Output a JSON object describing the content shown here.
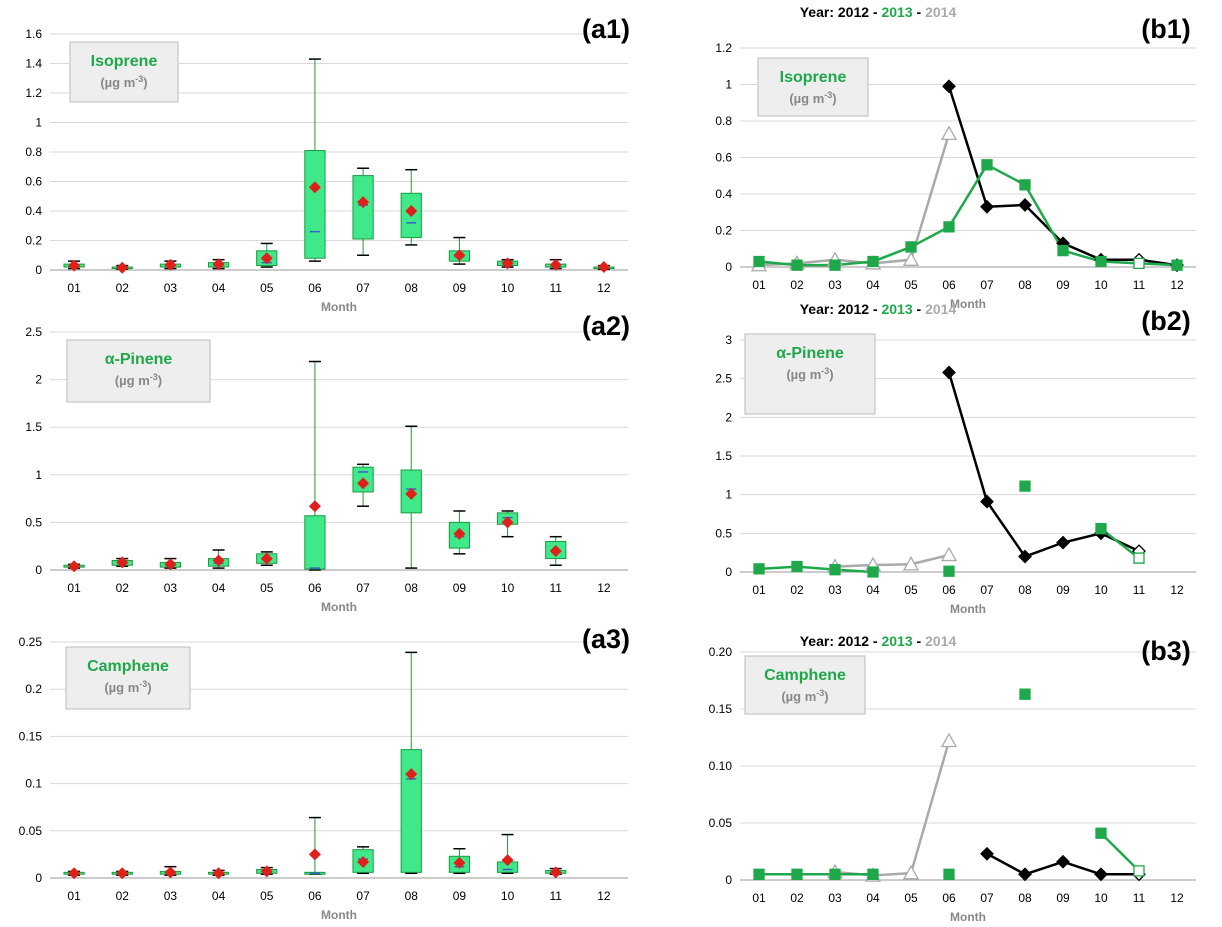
{
  "colors": {
    "green": "#1fa84a",
    "box_fill": "#3fe98a",
    "box_edge": "#1a9a40",
    "mean": "#e0201b",
    "median": "#3a5fc8",
    "black": "#000000",
    "gray": "#aaaaaa"
  },
  "months": [
    "01",
    "02",
    "03",
    "04",
    "05",
    "06",
    "07",
    "08",
    "09",
    "10",
    "11",
    "12"
  ],
  "x_label": "Month",
  "year_legend": {
    "prefix": "Year: ",
    "y2012": "2012",
    "sep": " - ",
    "y2013": "2013",
    "y2014": "2014"
  },
  "chart_data": [
    {
      "id": "a1",
      "panel_label": "(a1)",
      "type": "box",
      "compound": "Isoprene",
      "unit": "(µg m",
      "unit_sup": "-3",
      "unit_close": ")",
      "categories": [
        "01",
        "02",
        "03",
        "04",
        "05",
        "06",
        "07",
        "08",
        "09",
        "10",
        "11",
        "12"
      ],
      "ylim": [
        0,
        1.6
      ],
      "yticks": [
        0,
        0.2,
        0.4,
        0.6,
        0.8,
        1,
        1.2,
        1.4,
        1.6
      ],
      "yticklabels": [
        "0",
        "0.2",
        "0.4",
        "0.6",
        "0.8",
        "1",
        "1.2",
        "1.4",
        "1.6"
      ],
      "boxes": [
        {
          "min": 0.01,
          "q1": 0.02,
          "median": 0.03,
          "q3": 0.04,
          "max": 0.06,
          "mean": 0.03
        },
        {
          "min": 0.005,
          "q1": 0.01,
          "median": 0.015,
          "q3": 0.02,
          "max": 0.03,
          "mean": 0.015
        },
        {
          "min": 0.01,
          "q1": 0.02,
          "median": 0.03,
          "q3": 0.04,
          "max": 0.06,
          "mean": 0.035
        },
        {
          "min": 0.01,
          "q1": 0.02,
          "median": 0.03,
          "q3": 0.05,
          "max": 0.07,
          "mean": 0.04
        },
        {
          "min": 0.02,
          "q1": 0.03,
          "median": 0.05,
          "q3": 0.13,
          "max": 0.18,
          "mean": 0.08
        },
        {
          "min": 0.06,
          "q1": 0.08,
          "median": 0.26,
          "q3": 0.81,
          "max": 1.43,
          "mean": 0.56
        },
        {
          "min": 0.1,
          "q1": 0.21,
          "median": 0.44,
          "q3": 0.64,
          "max": 0.69,
          "mean": 0.46
        },
        {
          "min": 0.17,
          "q1": 0.22,
          "median": 0.32,
          "q3": 0.52,
          "max": 0.68,
          "mean": 0.4
        },
        {
          "min": 0.04,
          "q1": 0.06,
          "median": 0.09,
          "q3": 0.13,
          "max": 0.22,
          "mean": 0.1
        },
        {
          "min": 0.02,
          "q1": 0.03,
          "median": 0.04,
          "q3": 0.06,
          "max": 0.07,
          "mean": 0.045
        },
        {
          "min": 0.01,
          "q1": 0.02,
          "median": 0.03,
          "q3": 0.04,
          "max": 0.07,
          "mean": 0.035
        },
        {
          "min": 0.005,
          "q1": 0.01,
          "median": 0.015,
          "q3": 0.02,
          "max": 0.03,
          "mean": 0.02
        }
      ]
    },
    {
      "id": "a2",
      "panel_label": "(a2)",
      "type": "box",
      "compound": "α-Pinene",
      "unit": "(µg m",
      "unit_sup": "-3",
      "unit_close": ")",
      "categories": [
        "01",
        "02",
        "03",
        "04",
        "05",
        "06",
        "07",
        "08",
        "09",
        "10",
        "11",
        "12"
      ],
      "ylim": [
        0,
        2.5
      ],
      "yticks": [
        0,
        0.5,
        1,
        1.5,
        2,
        2.5
      ],
      "yticklabels": [
        "0",
        "0.5",
        "1",
        "1.5",
        "2",
        "2.5"
      ],
      "boxes": [
        {
          "min": 0.02,
          "q1": 0.03,
          "median": 0.04,
          "q3": 0.05,
          "max": 0.06,
          "mean": 0.04
        },
        {
          "min": 0.04,
          "q1": 0.05,
          "median": 0.07,
          "q3": 0.1,
          "max": 0.12,
          "mean": 0.08
        },
        {
          "min": 0.02,
          "q1": 0.03,
          "median": 0.05,
          "q3": 0.08,
          "max": 0.12,
          "mean": 0.06
        },
        {
          "min": 0.02,
          "q1": 0.04,
          "median": 0.07,
          "q3": 0.12,
          "max": 0.21,
          "mean": 0.1
        },
        {
          "min": 0.05,
          "q1": 0.07,
          "median": 0.11,
          "q3": 0.17,
          "max": 0.19,
          "mean": 0.12
        },
        {
          "min": 0.0,
          "q1": 0.01,
          "median": 0.02,
          "q3": 0.57,
          "max": 2.19,
          "mean": 0.67
        },
        {
          "min": 0.67,
          "q1": 0.82,
          "median": 1.03,
          "q3": 1.08,
          "max": 1.11,
          "mean": 0.91
        },
        {
          "min": 0.02,
          "q1": 0.6,
          "median": 0.85,
          "q3": 1.05,
          "max": 1.51,
          "mean": 0.8
        },
        {
          "min": 0.17,
          "q1": 0.23,
          "median": 0.35,
          "q3": 0.5,
          "max": 0.62,
          "mean": 0.38
        },
        {
          "min": 0.35,
          "q1": 0.48,
          "median": 0.55,
          "q3": 0.6,
          "max": 0.62,
          "mean": 0.5
        },
        {
          "min": 0.05,
          "q1": 0.12,
          "median": 0.2,
          "q3": 0.3,
          "max": 0.35,
          "mean": 0.2
        },
        null
      ]
    },
    {
      "id": "a3",
      "panel_label": "(a3)",
      "type": "box",
      "compound": "Camphene",
      "unit": "(µg m",
      "unit_sup": "-3",
      "unit_close": ")",
      "categories": [
        "01",
        "02",
        "03",
        "04",
        "05",
        "06",
        "07",
        "08",
        "09",
        "10",
        "11",
        "12"
      ],
      "ylim": [
        0,
        0.25
      ],
      "yticks": [
        0,
        0.05,
        0.1,
        0.15,
        0.2,
        0.25
      ],
      "yticklabels": [
        "0",
        "0.05",
        "0.1",
        "0.15",
        "0.2",
        "0.25"
      ],
      "boxes": [
        {
          "min": 0.003,
          "q1": 0.004,
          "median": 0.005,
          "q3": 0.006,
          "max": 0.007,
          "mean": 0.005
        },
        {
          "min": 0.003,
          "q1": 0.004,
          "median": 0.005,
          "q3": 0.006,
          "max": 0.007,
          "mean": 0.005
        },
        {
          "min": 0.003,
          "q1": 0.004,
          "median": 0.005,
          "q3": 0.007,
          "max": 0.012,
          "mean": 0.006
        },
        {
          "min": 0.003,
          "q1": 0.004,
          "median": 0.005,
          "q3": 0.006,
          "max": 0.008,
          "mean": 0.005
        },
        {
          "min": 0.004,
          "q1": 0.005,
          "median": 0.006,
          "q3": 0.009,
          "max": 0.011,
          "mean": 0.007
        },
        {
          "min": 0.004,
          "q1": 0.004,
          "median": 0.005,
          "q3": 0.006,
          "max": 0.064,
          "mean": 0.025
        },
        {
          "min": 0.005,
          "q1": 0.006,
          "median": 0.02,
          "q3": 0.03,
          "max": 0.033,
          "mean": 0.017
        },
        {
          "min": 0.005,
          "q1": 0.006,
          "median": 0.105,
          "q3": 0.136,
          "max": 0.239,
          "mean": 0.11
        },
        {
          "min": 0.005,
          "q1": 0.006,
          "median": 0.012,
          "q3": 0.023,
          "max": 0.031,
          "mean": 0.016
        },
        {
          "min": 0.005,
          "q1": 0.006,
          "median": 0.009,
          "q3": 0.017,
          "max": 0.046,
          "mean": 0.019
        },
        {
          "min": 0.004,
          "q1": 0.005,
          "median": 0.006,
          "q3": 0.008,
          "max": 0.01,
          "mean": 0.006
        },
        null
      ]
    },
    {
      "id": "b1",
      "panel_label": "(b1)",
      "type": "line",
      "compound": "Isoprene",
      "unit": "(µg m",
      "unit_sup": "-3",
      "unit_close": ")",
      "x": [
        "01",
        "02",
        "03",
        "04",
        "05",
        "06",
        "07",
        "08",
        "09",
        "10",
        "11",
        "12"
      ],
      "ylim": [
        0,
        1.2
      ],
      "yticks": [
        0,
        0.2,
        0.4,
        0.6,
        0.8,
        1,
        1.2
      ],
      "yticklabels": [
        "0",
        "0.2",
        "0.4",
        "0.6",
        "0.8",
        "1",
        "1.2"
      ],
      "series": [
        {
          "name": "2014",
          "marker": "triangle",
          "values": [
            0.01,
            0.02,
            0.04,
            0.02,
            0.04,
            0.73,
            null,
            null,
            null,
            null,
            null,
            null
          ]
        },
        {
          "name": "2012",
          "marker": "diamond",
          "values": [
            null,
            null,
            null,
            null,
            null,
            0.99,
            0.33,
            0.34,
            0.13,
            0.04,
            0.04,
            0.01
          ]
        },
        {
          "name": "2013",
          "marker": "square",
          "values": [
            0.03,
            0.01,
            0.01,
            0.03,
            0.11,
            0.22,
            0.56,
            0.45,
            0.09,
            0.03,
            0.02,
            0.01
          ]
        }
      ]
    },
    {
      "id": "b2",
      "panel_label": "(b2)",
      "type": "line",
      "compound": "α-Pinene",
      "unit": "(µg m",
      "unit_sup": "-3",
      "unit_close": ")",
      "x": [
        "01",
        "02",
        "03",
        "04",
        "05",
        "06",
        "07",
        "08",
        "09",
        "10",
        "11",
        "12"
      ],
      "ylim": [
        0,
        3
      ],
      "yticks": [
        0,
        0.5,
        1,
        1.5,
        2,
        2.5,
        3
      ],
      "yticklabels": [
        "0",
        "0.5",
        "1",
        "1.5",
        "2",
        "2.5",
        "3"
      ],
      "series": [
        {
          "name": "2014",
          "marker": "triangle",
          "values": [
            null,
            null,
            0.07,
            0.09,
            0.1,
            0.22,
            null,
            null,
            null,
            null,
            null,
            null
          ]
        },
        {
          "name": "2012",
          "marker": "diamond",
          "values": [
            null,
            null,
            null,
            null,
            null,
            2.58,
            0.91,
            0.2,
            0.38,
            0.5,
            0.27,
            null
          ]
        },
        {
          "name": "2013",
          "marker": "square",
          "values": [
            0.04,
            0.07,
            0.03,
            0.0,
            null,
            0.01,
            null,
            1.11,
            null,
            0.56,
            0.18,
            null
          ]
        }
      ]
    },
    {
      "id": "b3",
      "panel_label": "(b3)",
      "type": "line",
      "compound": "Camphene",
      "unit": "(µg m",
      "unit_sup": "-3",
      "unit_close": ")",
      "x": [
        "01",
        "02",
        "03",
        "04",
        "05",
        "06",
        "07",
        "08",
        "09",
        "10",
        "11",
        "12"
      ],
      "ylim": [
        0,
        0.2
      ],
      "yticks": [
        0,
        0.05,
        0.1,
        0.15,
        0.2
      ],
      "yticklabels": [
        "0",
        "0.05",
        "0.10",
        "0.15",
        "0.20"
      ],
      "series": [
        {
          "name": "2014",
          "marker": "triangle",
          "values": [
            null,
            null,
            0.007,
            0.004,
            0.006,
            0.122,
            null,
            null,
            null,
            null,
            null,
            null
          ]
        },
        {
          "name": "2012",
          "marker": "diamond",
          "values": [
            null,
            null,
            null,
            null,
            null,
            null,
            0.023,
            0.005,
            0.016,
            0.005,
            0.005,
            null
          ]
        },
        {
          "name": "2013",
          "marker": "square",
          "values": [
            0.005,
            0.005,
            0.005,
            0.005,
            null,
            0.005,
            null,
            0.163,
            null,
            0.041,
            0.008,
            null
          ]
        }
      ]
    }
  ]
}
